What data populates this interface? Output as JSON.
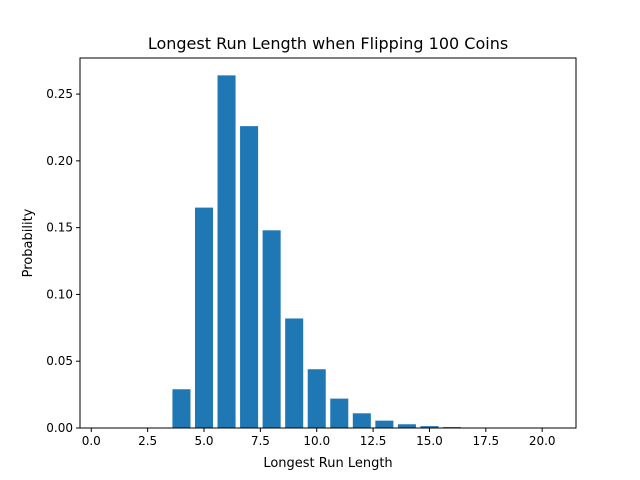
{
  "chart_data": {
    "type": "bar",
    "title": "Longest Run Length when Flipping 100 Coins",
    "xlabel": "Longest Run Length",
    "ylabel": "Probability",
    "x": [
      1,
      2,
      3,
      4,
      5,
      6,
      7,
      8,
      9,
      10,
      11,
      12,
      13,
      14,
      15,
      16,
      17,
      18,
      19,
      20
    ],
    "values": [
      0.0,
      0.0,
      0.0,
      0.029,
      0.165,
      0.264,
      0.226,
      0.148,
      0.082,
      0.044,
      0.022,
      0.011,
      0.0055,
      0.0028,
      0.0014,
      0.0007,
      0.0003,
      0.0002,
      0.0001,
      0.0
    ],
    "xlim": [
      -0.5,
      21.5
    ],
    "ylim": [
      0,
      0.277
    ],
    "xticks": [
      0.0,
      2.5,
      5.0,
      7.5,
      10.0,
      12.5,
      15.0,
      17.5,
      20.0
    ],
    "xtick_labels": [
      "0.0",
      "2.5",
      "5.0",
      "7.5",
      "10.0",
      "12.5",
      "15.0",
      "17.5",
      "20.0"
    ],
    "yticks": [
      0.0,
      0.05,
      0.1,
      0.15,
      0.2,
      0.25
    ],
    "ytick_labels": [
      "0.00",
      "0.05",
      "0.10",
      "0.15",
      "0.20",
      "0.25"
    ],
    "bar_color": "#1f77b4",
    "grid": false,
    "legend": "none"
  }
}
